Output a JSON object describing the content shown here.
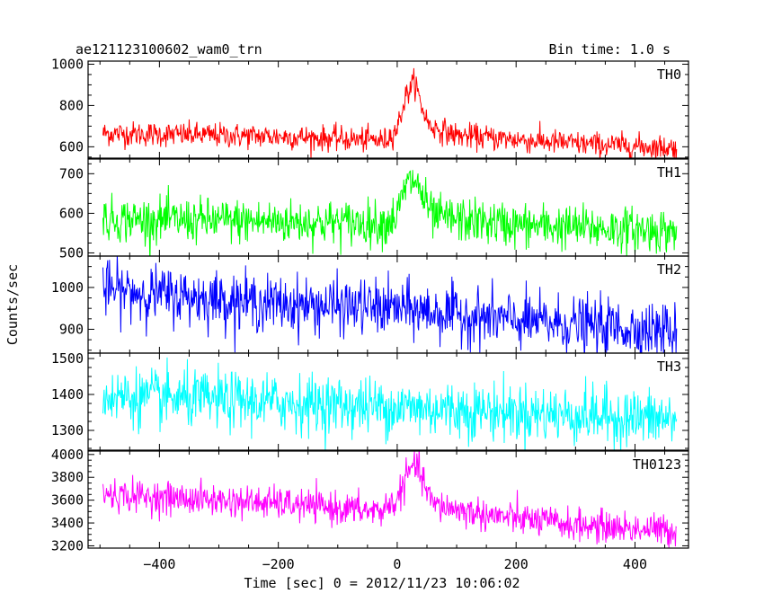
{
  "header": {
    "title": "ae121123100602_wam0_trn",
    "bin_time": "Bin time: 1.0 s"
  },
  "chart_data": {
    "type": "line",
    "title": "ae121123100602_wam0_trn",
    "subtitle": "Bin time: 1.0 s",
    "xlabel": "Time [sec] 0 = 2012/11/23 10:06:02",
    "ylabel": "Counts/sec",
    "xlim": [
      -520,
      490
    ],
    "x_ticks": [
      -400,
      -200,
      0,
      200,
      400
    ],
    "x_tick_labels": [
      "−400",
      "−200",
      "0",
      "200",
      "400"
    ],
    "x_range_data": [
      -495,
      470
    ],
    "grid": false,
    "panels": [
      {
        "name": "TH0",
        "color": "#ff0000",
        "ylim": [
          545,
          1015
        ],
        "y_ticks": [
          600,
          800,
          1000
        ],
        "y_tick_labels": [
          "600",
          "800",
          "1000"
        ],
        "trend": [
          [
            -495,
            665
          ],
          [
            -200,
            650
          ],
          [
            -20,
            630
          ],
          [
            0,
            690
          ],
          [
            15,
            850
          ],
          [
            30,
            920
          ],
          [
            40,
            800
          ],
          [
            55,
            700
          ],
          [
            100,
            655
          ],
          [
            300,
            615
          ],
          [
            470,
            595
          ]
        ],
        "noise_sd": 30
      },
      {
        "name": "TH1",
        "color": "#00ff00",
        "ylim": [
          492,
          737
        ],
        "y_ticks": [
          500,
          600,
          700
        ],
        "y_tick_labels": [
          "500",
          "600",
          "700"
        ],
        "trend": [
          [
            -495,
            585
          ],
          [
            -20,
            575
          ],
          [
            0,
            595
          ],
          [
            15,
            670
          ],
          [
            30,
            685
          ],
          [
            45,
            635
          ],
          [
            60,
            590
          ],
          [
            200,
            570
          ],
          [
            470,
            555
          ]
        ],
        "noise_sd": 28
      },
      {
        "name": "TH2",
        "color": "#0000ff",
        "ylim": [
          843,
          1075
        ],
        "y_ticks": [
          900,
          1000
        ],
        "y_tick_labels": [
          "900",
          "1000"
        ],
        "trend": [
          [
            -495,
            995
          ],
          [
            -200,
            960
          ],
          [
            0,
            950
          ],
          [
            200,
            920
          ],
          [
            470,
            895
          ]
        ],
        "noise_sd": 33
      },
      {
        "name": "TH3",
        "color": "#00ffff",
        "ylim": [
          1245,
          1515
        ],
        "y_ticks": [
          1300,
          1400,
          1500
        ],
        "y_tick_labels": [
          "1300",
          "1400",
          "1500"
        ],
        "trend": [
          [
            -495,
            1395
          ],
          [
            0,
            1365
          ],
          [
            470,
            1330
          ]
        ],
        "noise_sd": 40
      },
      {
        "name": "TH0123",
        "color": "#ff00ff",
        "ylim": [
          3180,
          4030
        ],
        "y_ticks": [
          3200,
          3400,
          3600,
          3800,
          4000
        ],
        "y_tick_labels": [
          "3200",
          "3400",
          "3600",
          "3800",
          "4000"
        ],
        "trend": [
          [
            -495,
            3650
          ],
          [
            -200,
            3570
          ],
          [
            -30,
            3500
          ],
          [
            0,
            3600
          ],
          [
            15,
            3800
          ],
          [
            30,
            3920
          ],
          [
            45,
            3750
          ],
          [
            60,
            3560
          ],
          [
            150,
            3470
          ],
          [
            300,
            3380
          ],
          [
            470,
            3330
          ]
        ],
        "noise_sd": 70
      }
    ]
  }
}
